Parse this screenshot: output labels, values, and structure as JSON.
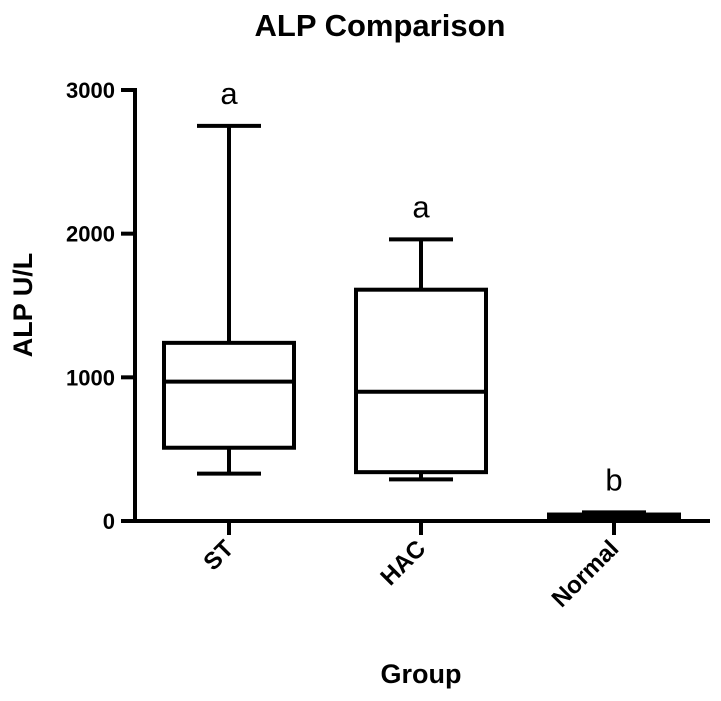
{
  "chart_data": {
    "type": "box",
    "title": "ALP Comparison",
    "xlabel": "Group",
    "ylabel": "ALP U/L",
    "ylim": [
      0,
      3000
    ],
    "yticks": [
      0,
      1000,
      2000,
      3000
    ],
    "grid": false,
    "legend": "none",
    "categories": [
      "ST",
      "HAC",
      "Normal"
    ],
    "boxes": [
      {
        "category": "ST",
        "min": 330,
        "q1": 510,
        "median": 970,
        "q3": 1240,
        "max": 2750,
        "group_letter": "a"
      },
      {
        "category": "HAC",
        "min": 290,
        "q1": 340,
        "median": 900,
        "q3": 1610,
        "max": 1960,
        "group_letter": "a"
      },
      {
        "category": "Normal",
        "min": 20,
        "q1": 25,
        "median": 35,
        "q3": 45,
        "max": 60,
        "group_letter": "b"
      }
    ],
    "colors": {
      "stroke": "#000000",
      "fill": "#ffffff"
    }
  }
}
